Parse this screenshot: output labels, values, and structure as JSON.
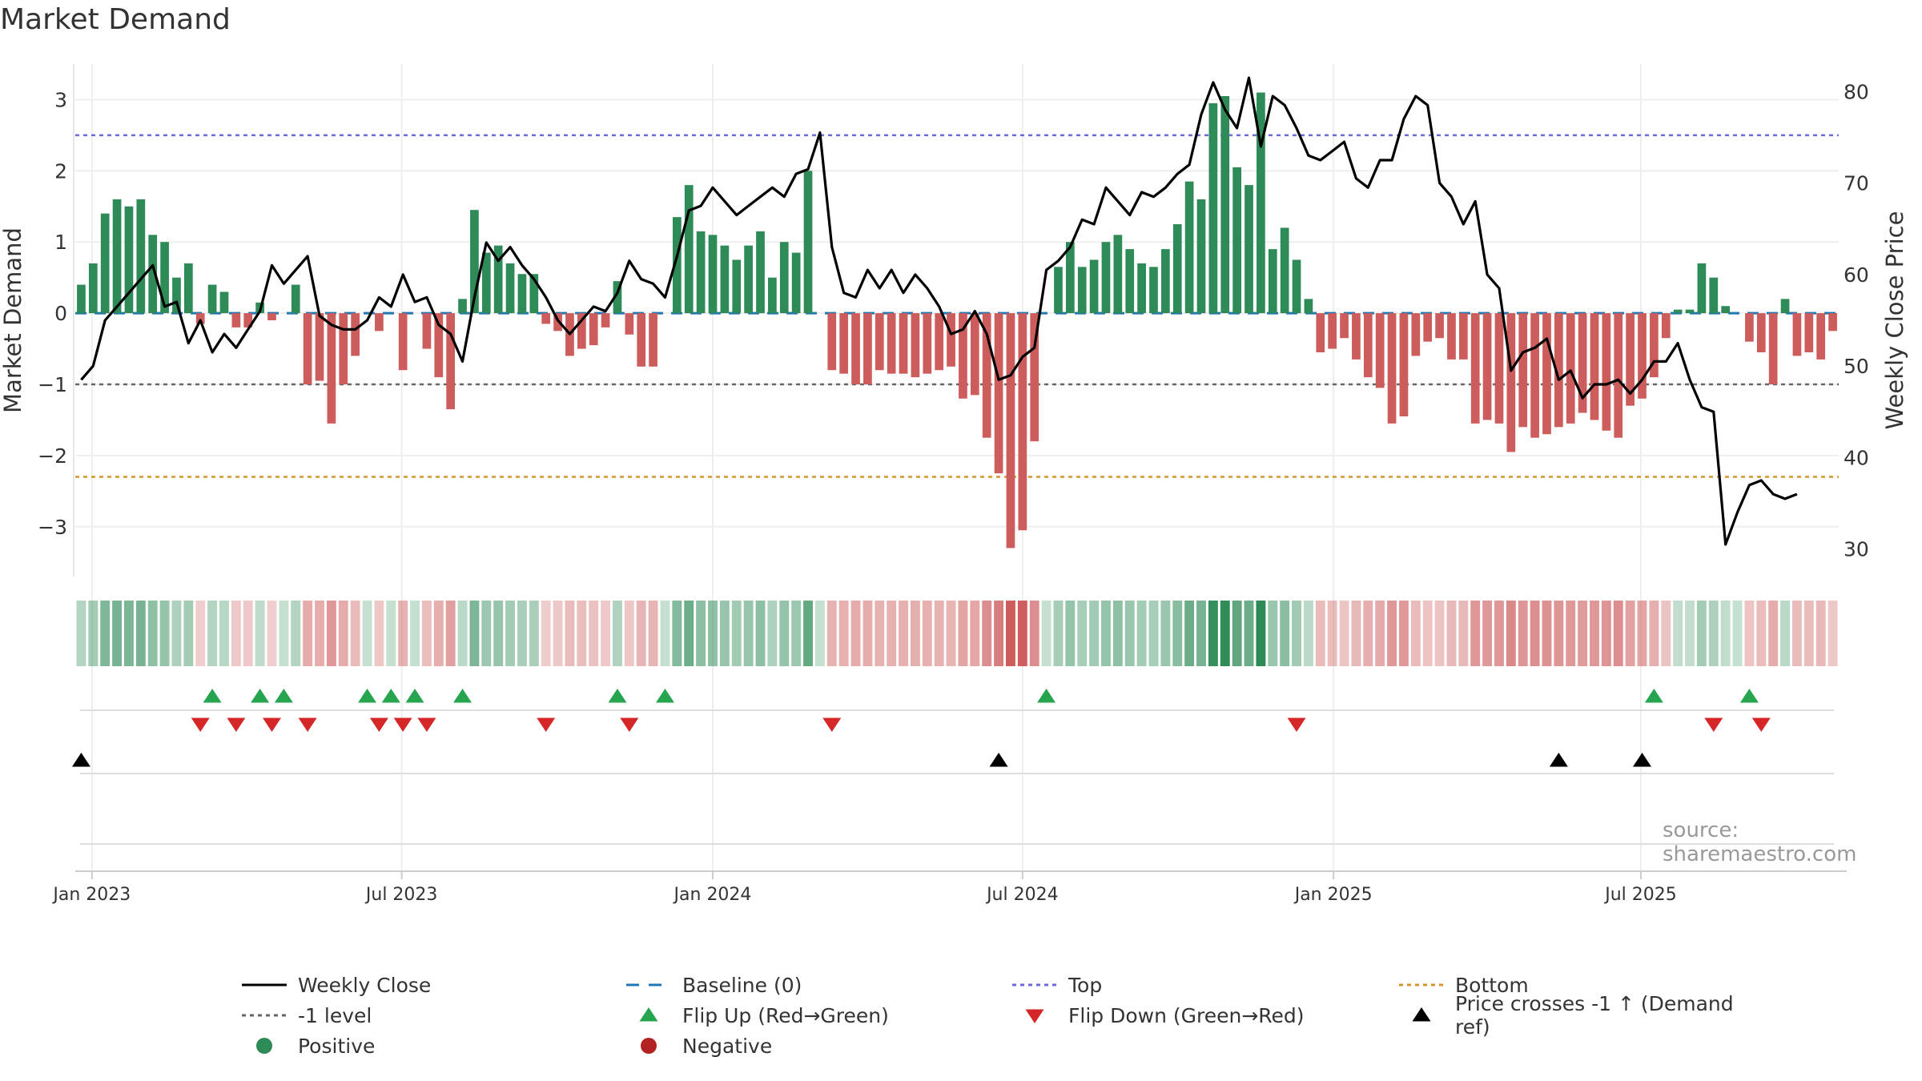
{
  "title": "Market Demand",
  "source": "source: sharemaestro.com",
  "colors": {
    "positive": "#2e8b57",
    "negative": "#cd5c5c",
    "top": "#6a6adc",
    "bottom": "#d4952e",
    "minus1": "#666666",
    "baseline": "#1f77b4",
    "flipUp": "#27a44f",
    "flipDown": "#d62728",
    "cross": "#000000",
    "price": "#000000"
  },
  "legend": [
    {
      "label": "Weekly Close",
      "swatch": "line",
      "color": "#000000"
    },
    {
      "label": "Baseline (0)",
      "swatch": "dash",
      "color": "#1f77b4"
    },
    {
      "label": "Top",
      "swatch": "dot",
      "color": "#6a6adc"
    },
    {
      "label": "Bottom",
      "swatch": "dot",
      "color": "#d4952e"
    },
    {
      "label": "-1 level",
      "swatch": "dot",
      "color": "#666666"
    },
    {
      "label": "Flip Up (Red→Green)",
      "swatch": "tri-up",
      "color": "#27a44f"
    },
    {
      "label": "Flip Down (Green→Red)",
      "swatch": "tri-down",
      "color": "#d62728"
    },
    {
      "label": "Price crosses -1 ↑ (Demand ref)",
      "swatch": "tri-up",
      "color": "#000000"
    },
    {
      "label": "Positive",
      "swatch": "circle",
      "color": "#2e8b57"
    },
    {
      "label": "Negative",
      "swatch": "circle",
      "color": "#b22222"
    }
  ],
  "chart_data": {
    "type": "bar",
    "title": "Market Demand",
    "ylabel": "Market Demand",
    "y2label": "Weekly Close Price",
    "ylim": [
      -3.7,
      3.5
    ],
    "y2lim": [
      27,
      83
    ],
    "yticks": [
      3,
      2,
      1,
      0,
      -1,
      -2,
      -3
    ],
    "ytick_labels": [
      "3",
      "2",
      "1",
      "0",
      "−1",
      "−2",
      "−3"
    ],
    "y2ticks": [
      80,
      70,
      60,
      50,
      40,
      30
    ],
    "y2tick_labels": [
      "80",
      "70",
      "60",
      "50",
      "40",
      "30"
    ],
    "x_start": "2022-12-26",
    "x_end": "2025-09-22",
    "xtick_labels": [
      "Jan 2023",
      "Jul 2023",
      "Jan 2024",
      "Jul 2024",
      "Jan 2025",
      "Jul 2025"
    ],
    "xtick_weeks": [
      0.9,
      26.9,
      53.0,
      79.0,
      105.1,
      130.9
    ],
    "reference_lines": [
      {
        "name": "Top",
        "value": 2.5
      },
      {
        "name": "Bottom",
        "value": -2.3
      },
      {
        "name": "-1 level",
        "value": -1.0
      },
      {
        "name": "Baseline (0)",
        "value": 0
      }
    ],
    "demand": [
      0.4,
      0.7,
      1.4,
      1.6,
      1.5,
      1.6,
      1.1,
      1.0,
      0.5,
      0.7,
      -0.15,
      0.4,
      0.3,
      -0.2,
      -0.2,
      0.15,
      -0.1,
      0.0,
      0.4,
      -1.0,
      -0.95,
      -1.55,
      -1.0,
      -0.6,
      0.0,
      -0.25,
      0.0,
      -0.8,
      0.0,
      -0.5,
      -0.9,
      -1.35,
      0.2,
      1.45,
      0.85,
      0.95,
      0.7,
      0.55,
      0.55,
      -0.15,
      -0.25,
      -0.6,
      -0.5,
      -0.45,
      -0.2,
      0.45,
      -0.3,
      -0.75,
      -0.75,
      0.0,
      1.35,
      1.8,
      1.15,
      1.1,
      0.95,
      0.75,
      0.95,
      1.15,
      0.5,
      1.0,
      0.85,
      2.0,
      0.0,
      -0.8,
      -0.85,
      -1.0,
      -1.0,
      -0.8,
      -0.85,
      -0.85,
      -0.9,
      -0.85,
      -0.8,
      -0.75,
      -1.2,
      -1.15,
      -1.75,
      -2.25,
      -3.3,
      -3.05,
      -1.8,
      0.0,
      0.65,
      1.0,
      0.65,
      0.75,
      1.0,
      1.1,
      0.9,
      0.7,
      0.65,
      0.9,
      1.25,
      1.85,
      1.6,
      2.95,
      3.05,
      2.05,
      1.8,
      3.1,
      0.9,
      1.2,
      0.75,
      0.2,
      -0.55,
      -0.5,
      -0.35,
      -0.65,
      -0.9,
      -1.05,
      -1.55,
      -1.45,
      -0.6,
      -0.4,
      -0.35,
      -0.65,
      -0.65,
      -1.55,
      -1.5,
      -1.55,
      -1.95,
      -1.6,
      -1.75,
      -1.7,
      -1.6,
      -1.55,
      -1.4,
      -1.5,
      -1.65,
      -1.75,
      -1.3,
      -1.2,
      -0.9,
      -0.35,
      0.05,
      0.05,
      0.7,
      0.5,
      0.1,
      0.0,
      -0.4,
      -0.55,
      -1.0,
      0.2,
      -0.6,
      -0.55,
      -0.65,
      -0.25
    ],
    "close": [
      48.5,
      50.0,
      55.0,
      56.5,
      58.0,
      59.5,
      61.0,
      56.5,
      57.0,
      52.5,
      55.0,
      51.5,
      53.5,
      52.0,
      54.0,
      56.0,
      61.0,
      59.0,
      60.5,
      62.0,
      55.5,
      54.5,
      54.0,
      54.0,
      55.0,
      57.5,
      56.5,
      60.0,
      57.0,
      57.5,
      54.5,
      53.5,
      50.5,
      57.5,
      63.5,
      61.5,
      63.0,
      61.0,
      59.5,
      57.5,
      55.0,
      53.5,
      55.0,
      56.5,
      56.0,
      58.0,
      61.5,
      59.5,
      59.0,
      57.5,
      62.0,
      67.0,
      67.5,
      69.5,
      68.0,
      66.5,
      67.5,
      68.5,
      69.5,
      68.5,
      71.0,
      71.5,
      75.5,
      63.0,
      58.0,
      57.5,
      60.5,
      58.5,
      60.5,
      58.0,
      60.0,
      58.5,
      56.5,
      53.5,
      54.0,
      56.0,
      53.5,
      48.5,
      49.0,
      51.0,
      52.0,
      60.5,
      61.5,
      63.0,
      66.0,
      65.5,
      69.5,
      68.0,
      66.5,
      69.0,
      68.5,
      69.5,
      71.0,
      72.0,
      77.5,
      81.0,
      78.0,
      76.0,
      81.5,
      74.0,
      79.5,
      78.5,
      76.0,
      73.0,
      72.5,
      73.5,
      74.5,
      70.5,
      69.5,
      72.5,
      72.5,
      77.0,
      79.5,
      78.5,
      70.0,
      68.5,
      65.5,
      68.0,
      60.0,
      58.5,
      49.5,
      51.5,
      52.0,
      53.0,
      48.5,
      49.5,
      46.5,
      48.0,
      48.0,
      48.5,
      47.0,
      48.5,
      50.5,
      50.5,
      52.5,
      48.5,
      45.5,
      45.0,
      30.5,
      34.0,
      37.0,
      37.5,
      36.0,
      35.5,
      36.0
    ],
    "flip_up_weeks": [
      11,
      15,
      17,
      24,
      26,
      28,
      32,
      45,
      49,
      81,
      132,
      140
    ],
    "flip_down_weeks": [
      10,
      13,
      16,
      19,
      25,
      27,
      29,
      39,
      46,
      63,
      102,
      137,
      141
    ],
    "price_cross_weeks": [
      0,
      77,
      124,
      131
    ]
  }
}
